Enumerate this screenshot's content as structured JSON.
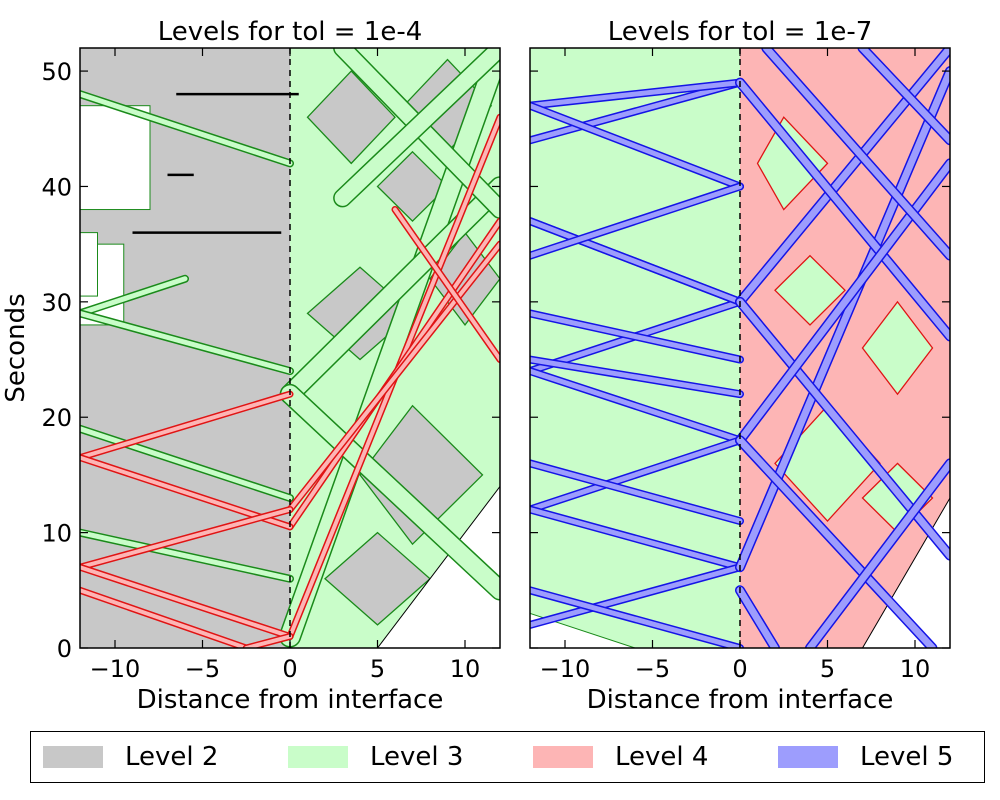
{
  "chart_data": [
    {
      "type": "heatmap",
      "title": "Levels for tol = 1e-4",
      "xlabel": "Distance from interface",
      "ylabel": "Seconds",
      "xlim": [
        -12,
        12
      ],
      "ylim": [
        0,
        52
      ],
      "xticks": [
        -10,
        -5,
        0,
        5,
        10
      ],
      "xtick_labels": [
        "−10",
        "−5",
        "0",
        "5",
        "10"
      ],
      "yticks": [
        0,
        10,
        20,
        30,
        40,
        50
      ],
      "ytick_labels": [
        "0",
        "10",
        "20",
        "30",
        "40",
        "50"
      ],
      "interface_line_x": 0,
      "grid": false,
      "levels_present": [
        "Level 2",
        "Level 3",
        "Level 4"
      ],
      "region_x_boundary": 0,
      "level3_bands": [
        {
          "from": [
            0,
            1
          ],
          "to": [
            12,
            52
          ],
          "width": 2.2
        },
        {
          "from": [
            0,
            22
          ],
          "to": [
            12,
            40
          ],
          "width": 2.0
        },
        {
          "from": [
            0,
            22
          ],
          "to": [
            12,
            5
          ],
          "width": 2.0
        },
        {
          "from": [
            3,
            52
          ],
          "to": [
            12,
            38
          ],
          "width": 1.8
        },
        {
          "from": [
            12,
            52
          ],
          "to": [
            3,
            39
          ],
          "width": 1.8
        }
      ],
      "level4_bands": [
        {
          "from": [
            0,
            1
          ],
          "to": [
            12,
            46
          ],
          "width": 0.6
        },
        {
          "from": [
            0,
            10.5
          ],
          "to": [
            12,
            37
          ],
          "width": 0.5
        },
        {
          "from": [
            0,
            12
          ],
          "to": [
            12,
            35
          ],
          "width": 0.5
        },
        {
          "from": [
            6,
            38
          ],
          "to": [
            12,
            25
          ],
          "width": 0.5
        },
        {
          "from": [
            0,
            22
          ],
          "to": [
            -12,
            16.5
          ],
          "width": 0.5
        },
        {
          "from": [
            0,
            10.5
          ],
          "to": [
            -12,
            16.5
          ],
          "width": 0.5
        },
        {
          "from": [
            0,
            12
          ],
          "to": [
            -12,
            7
          ],
          "width": 0.5
        },
        {
          "from": [
            0,
            1
          ],
          "to": [
            -12,
            7
          ],
          "width": 0.5
        },
        {
          "from": [
            -2.5,
            0
          ],
          "to": [
            -12,
            5
          ],
          "width": 0.5
        },
        {
          "from": [
            -2.5,
            0
          ],
          "to": [
            0,
            1
          ],
          "width": 0.5
        }
      ],
      "level3_left_bands": [
        {
          "from": [
            -12,
            48
          ],
          "to": [
            0,
            42
          ],
          "width": 0.8
        },
        {
          "from": [
            -12,
            29
          ],
          "to": [
            -6,
            32
          ],
          "width": 0.8
        },
        {
          "from": [
            -12,
            29
          ],
          "to": [
            0,
            24
          ],
          "width": 0.8
        },
        {
          "from": [
            -12,
            19
          ],
          "to": [
            0,
            13
          ],
          "width": 0.8
        },
        {
          "from": [
            -12,
            10
          ],
          "to": [
            0,
            6
          ],
          "width": 0.8
        }
      ],
      "black_segments": [
        {
          "x": [
            -6.5,
            0.5
          ],
          "y": 48
        },
        {
          "x": [
            -9,
            -0.5
          ],
          "y": 36
        },
        {
          "x": [
            -7,
            -5.5
          ],
          "y": 41
        }
      ],
      "white_regions_left": [
        {
          "y_from": 38,
          "y_to": 47,
          "x_to": -8
        },
        {
          "y_from": 28,
          "y_to": 35,
          "x_to": -9.5
        },
        {
          "y_from": 30.5,
          "y_to": 36,
          "x_to": -11
        }
      ],
      "white_region_right": {
        "y_at_x12": 14,
        "y_at_x5": 0
      }
    },
    {
      "type": "heatmap",
      "title": "Levels for tol = 1e-7",
      "xlabel": "Distance from interface",
      "ylabel": "",
      "xlim": [
        -12,
        12
      ],
      "ylim": [
        0,
        52
      ],
      "xticks": [
        -10,
        -5,
        0,
        5,
        10
      ],
      "xtick_labels": [
        "−10",
        "−5",
        "0",
        "5",
        "10"
      ],
      "yticks": [
        0,
        10,
        20,
        30,
        40,
        50
      ],
      "ytick_labels": [],
      "interface_line_x": 0,
      "grid": false,
      "levels_present": [
        "Level 2",
        "Level 3",
        "Level 4",
        "Level 5"
      ],
      "level5_bands_right": [
        {
          "from": [
            0,
            7
          ],
          "to": [
            12,
            50
          ]
        },
        {
          "from": [
            0,
            30
          ],
          "to": [
            12,
            52
          ]
        },
        {
          "from": [
            0,
            30
          ],
          "to": [
            12,
            8
          ]
        },
        {
          "from": [
            0,
            49
          ],
          "to": [
            12,
            27
          ]
        },
        {
          "from": [
            0,
            18
          ],
          "to": [
            12,
            42
          ]
        },
        {
          "from": [
            0,
            18
          ],
          "to": [
            11,
            0
          ]
        },
        {
          "from": [
            1.5,
            52
          ],
          "to": [
            12,
            34
          ]
        },
        {
          "from": [
            7,
            52
          ],
          "to": [
            12,
            44
          ]
        },
        {
          "from": [
            4,
            0
          ],
          "to": [
            12,
            16
          ]
        },
        {
          "from": [
            2,
            0
          ],
          "to": [
            0,
            5
          ]
        }
      ],
      "level5_bands_left": [
        {
          "from": [
            0,
            49
          ],
          "to": [
            -12,
            44
          ]
        },
        {
          "from": [
            0,
            49
          ],
          "to": [
            -12,
            47
          ]
        },
        {
          "from": [
            0,
            30
          ],
          "to": [
            -12,
            37
          ]
        },
        {
          "from": [
            0,
            30
          ],
          "to": [
            -12,
            24
          ]
        },
        {
          "from": [
            0,
            18
          ],
          "to": [
            -12,
            24
          ]
        },
        {
          "from": [
            0,
            18
          ],
          "to": [
            -12,
            12
          ]
        },
        {
          "from": [
            0,
            7
          ],
          "to": [
            -12,
            12
          ]
        },
        {
          "from": [
            0,
            7
          ],
          "to": [
            -12,
            2
          ]
        },
        {
          "from": [
            -12,
            47
          ],
          "to": [
            0,
            40
          ]
        },
        {
          "from": [
            -12,
            37
          ],
          "to": [
            0,
            30
          ]
        },
        {
          "from": [
            -12,
            34
          ],
          "to": [
            0,
            40
          ]
        },
        {
          "from": [
            -12,
            25
          ],
          "to": [
            0,
            22
          ]
        },
        {
          "from": [
            -12,
            29
          ],
          "to": [
            0,
            25
          ]
        },
        {
          "from": [
            -12,
            16
          ],
          "to": [
            0,
            11
          ]
        },
        {
          "from": [
            -12,
            5
          ],
          "to": [
            0,
            0
          ]
        }
      ],
      "white_region_right": {
        "y_at_x12": 13,
        "y_at_x7": 0
      },
      "white_region_left_bottom": {
        "y_at_x-12": 3,
        "y_at_x-6": 0
      }
    }
  ],
  "legend": {
    "items": [
      {
        "label": "Level 2",
        "color": "#c8c8c8"
      },
      {
        "label": "Level 3",
        "color": "#c9fdc9"
      },
      {
        "label": "Level 4",
        "color": "#fdb5b5"
      },
      {
        "label": "Level 5",
        "color": "#9d9dfd"
      }
    ]
  },
  "colors": {
    "level2": "#c8c8c8",
    "level3": "#c9fdc9",
    "level4": "#fdb5b5",
    "level5": "#9d9dfd",
    "edge3": "#1a8a1a",
    "edge4": "#e01414",
    "edge5": "#1414e6"
  }
}
